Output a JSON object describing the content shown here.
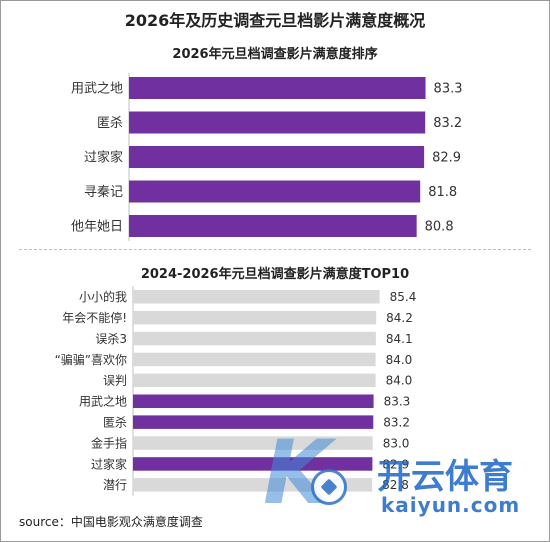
{
  "title": "2026年及历史调查元旦档影片满意度概况",
  "source": "source：中国电影观众满意度调查",
  "watermark": {
    "cn": "开云体育",
    "en": "kaiyun.com"
  },
  "colors": {
    "highlight": "#7030a0",
    "other": "#d9d9d9",
    "text": "#333333"
  },
  "chart_data": [
    {
      "type": "bar",
      "orientation": "horizontal",
      "title": "2026年元旦档调查影片满意度排序",
      "categories": [
        "用武之地",
        "匿杀",
        "过家家",
        "寻秦记",
        "他年她日"
      ],
      "values": [
        83.3,
        83.2,
        82.9,
        81.8,
        80.8
      ],
      "value_labels": [
        "83.3",
        "83.2",
        "82.9",
        "81.8",
        "80.8"
      ],
      "highlight": [
        true,
        true,
        true,
        true,
        true
      ]
    },
    {
      "type": "bar",
      "orientation": "horizontal",
      "title": "2024-2026年元旦档调查影片满意度TOP10",
      "categories": [
        "小小的我",
        "年会不能停!",
        "误杀3",
        "“骗骗”喜欢你",
        "误判",
        "用武之地",
        "匿杀",
        "金手指",
        "过家家",
        "潜行"
      ],
      "values": [
        85.4,
        84.2,
        84.1,
        84.0,
        84.0,
        83.3,
        83.2,
        83.0,
        82.9,
        82.8
      ],
      "value_labels": [
        "85.4",
        "84.2",
        "84.1",
        "84.0",
        "84.0",
        "83.3",
        "83.2",
        "83.0",
        "82.9",
        "82.8"
      ],
      "highlight": [
        false,
        false,
        false,
        false,
        false,
        true,
        true,
        false,
        true,
        false
      ]
    }
  ]
}
